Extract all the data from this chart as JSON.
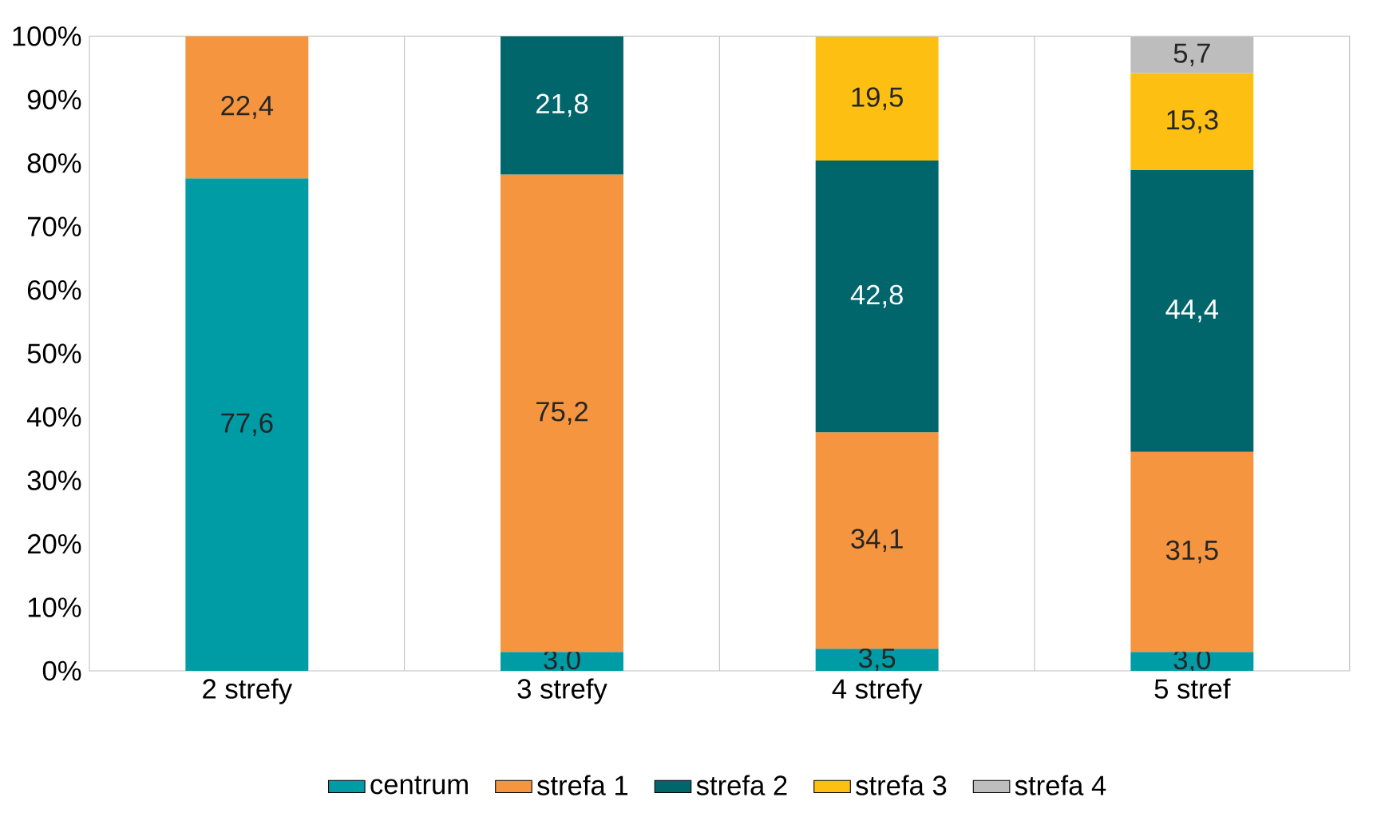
{
  "chart_data": {
    "type": "bar",
    "stacked": true,
    "categories": [
      "2 strefy",
      "3 strefy",
      "4 strefy",
      "5 stref"
    ],
    "series": [
      {
        "name": "centrum",
        "color": "#009ca6",
        "values": [
          77.6,
          3.0,
          3.5,
          3.0
        ],
        "value_labels": [
          "77,6",
          "3,0",
          "3,5",
          "3,0"
        ]
      },
      {
        "name": "strefa 1",
        "color": "#f5953f",
        "values": [
          22.4,
          75.2,
          34.1,
          31.5
        ],
        "value_labels": [
          "22,4",
          "75,2",
          "34,1",
          "31,5"
        ]
      },
      {
        "name": "strefa 2",
        "color": "#00666b",
        "values": [
          null,
          21.8,
          42.8,
          44.4
        ],
        "value_labels": [
          null,
          "21,8",
          "42,8",
          "44,4"
        ]
      },
      {
        "name": "strefa 3",
        "color": "#fdc012",
        "values": [
          null,
          null,
          19.5,
          15.3
        ],
        "value_labels": [
          null,
          null,
          "19,5",
          "15,3"
        ]
      },
      {
        "name": "strefa 4",
        "color": "#bdbdbd",
        "values": [
          null,
          null,
          null,
          5.7
        ],
        "value_labels": [
          null,
          null,
          null,
          "5,7"
        ]
      }
    ],
    "ylim": [
      0,
      100
    ],
    "yticks": [
      {
        "value": 0,
        "label": "0%"
      },
      {
        "value": 10,
        "label": "10%"
      },
      {
        "value": 20,
        "label": "20%"
      },
      {
        "value": 30,
        "label": "30%"
      },
      {
        "value": 40,
        "label": "40%"
      },
      {
        "value": 50,
        "label": "50%"
      },
      {
        "value": 60,
        "label": "60%"
      },
      {
        "value": 70,
        "label": "70%"
      },
      {
        "value": 80,
        "label": "80%"
      },
      {
        "value": 90,
        "label": "90%"
      },
      {
        "value": 100,
        "label": "100%"
      }
    ],
    "grid": "x",
    "legend": "bottom"
  }
}
